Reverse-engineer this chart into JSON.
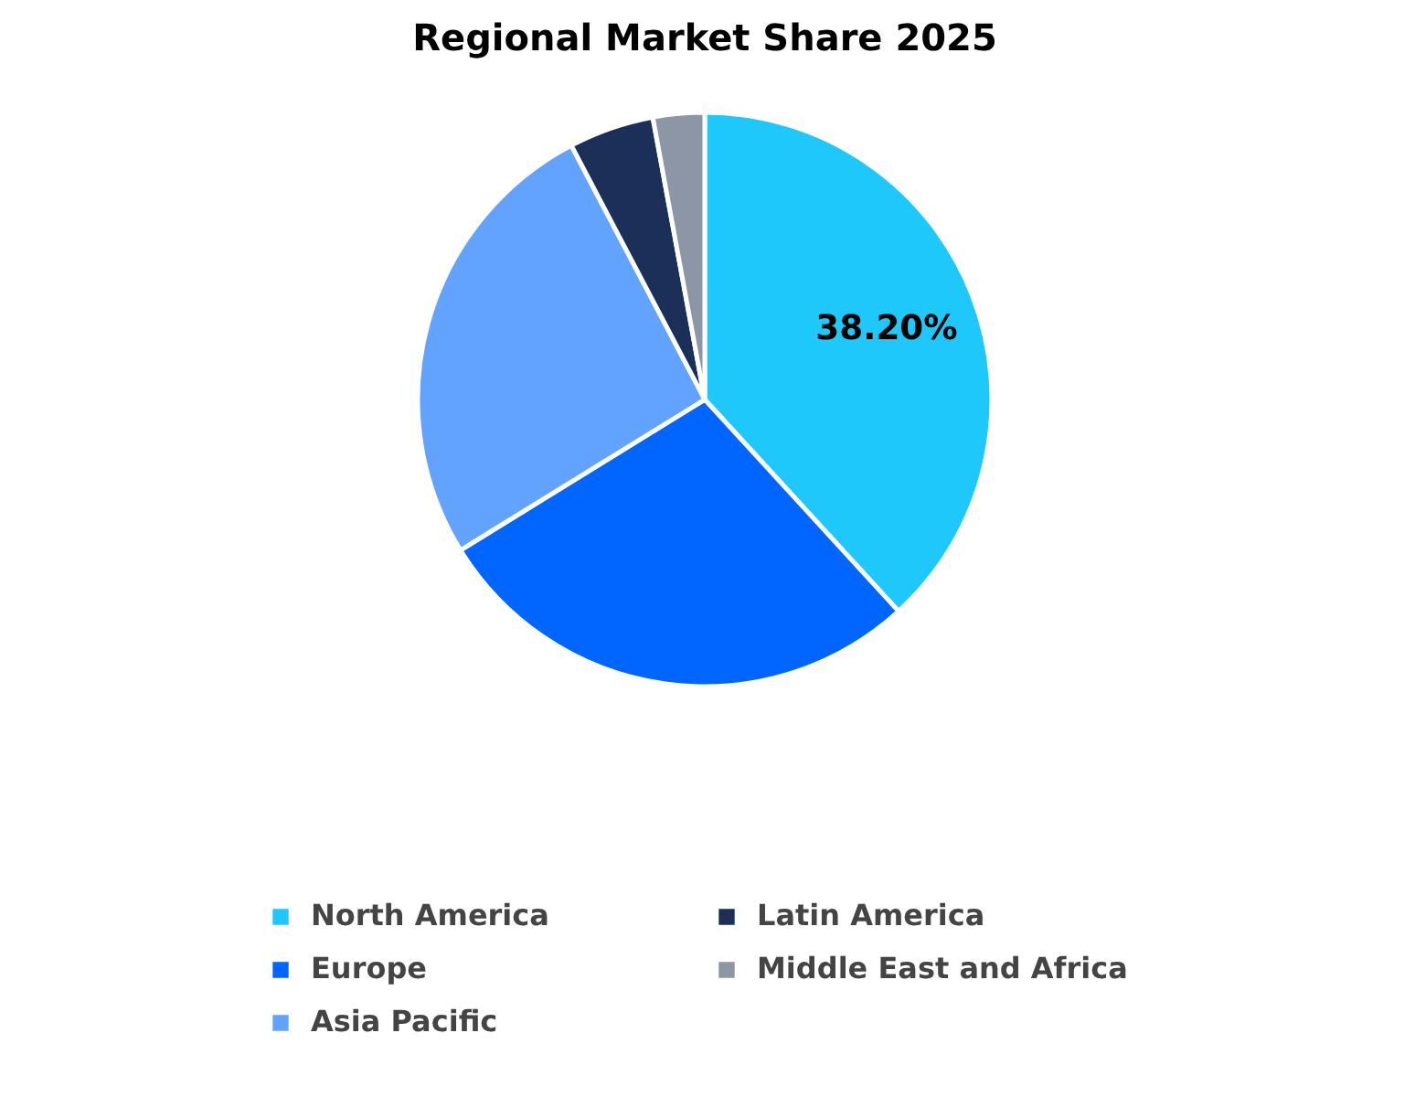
{
  "chart_data": {
    "type": "pie",
    "title": "Regional Market Share 2025",
    "categories": [
      "North America",
      "Europe",
      "Asia Pacific",
      "Latin America",
      "Middle East and Africa"
    ],
    "values": [
      38.2,
      28.0,
      26.1,
      4.8,
      2.9
    ],
    "colors": [
      "#1ec8fa",
      "#0066ff",
      "#62a3ff",
      "#1b2f59",
      "#8d96a6"
    ],
    "value_labels": [
      "38.20%",
      null,
      null,
      null,
      null
    ],
    "legend": "bottom"
  }
}
